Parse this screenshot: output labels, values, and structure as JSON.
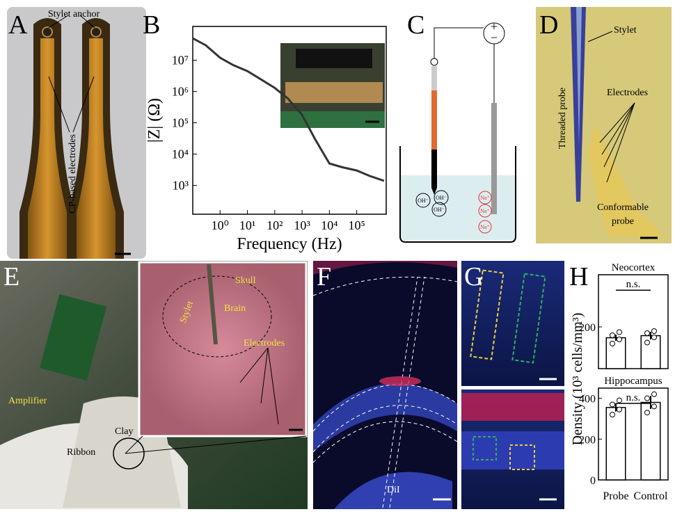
{
  "panel_labels": [
    "A",
    "B",
    "C",
    "D",
    "E",
    "F",
    "G",
    "H"
  ],
  "annotations": {
    "A": [
      "Stylet anchor",
      "CP-based electrodes"
    ],
    "C": {
      "battery": [
        "+",
        "−"
      ],
      "anode_ions": [
        "OH⁻",
        "OH⁻",
        "OH⁻"
      ],
      "cathode_ions": [
        "Na⁺",
        "Na⁺",
        "Na⁺"
      ]
    },
    "D": [
      "Stylet",
      "Threaded probe",
      "Electrodes",
      "Conformable",
      "probe"
    ],
    "E": [
      "Amplifier",
      "Ribbon",
      "Clay",
      "Skull",
      "Brain",
      "Stylet",
      "Electrodes"
    ],
    "F": [
      "DiI"
    ]
  },
  "chart_data": [
    {
      "type": "line",
      "ylabel": "|Z| (Ω)",
      "xlabel": "Frequency (Hz)",
      "x": [
        0.1,
        0.3,
        1,
        3,
        10,
        30,
        100,
        300,
        1000,
        3000,
        10000,
        30000,
        100000,
        300000,
        1000000
      ],
      "series": [
        {
          "color": "#333333",
          "values": [
            50000000,
            30000000,
            12000000,
            7000000,
            4500000,
            2500000,
            1300000,
            600000,
            180000,
            30000,
            5000,
            3800,
            3000,
            2000,
            1400
          ]
        }
      ],
      "xlim": [
        0.1,
        1200000
      ],
      "ylim": [
        120,
        120000000
      ],
      "log_x": true,
      "log_y": true,
      "xticks": [
        {
          "value": 1,
          "label": "10⁰"
        },
        {
          "value": 10,
          "label": "10¹"
        },
        {
          "value": 100,
          "label": "10²"
        },
        {
          "value": 1000,
          "label": "10³"
        },
        {
          "value": 10000,
          "label": "10⁴"
        },
        {
          "value": 100000,
          "label": "10⁵"
        }
      ],
      "yticks": [
        {
          "value": 1000,
          "label": "10³"
        },
        {
          "value": 10000,
          "label": "10⁴"
        },
        {
          "value": 100000,
          "label": "10⁵"
        },
        {
          "value": 1000000,
          "label": "10⁶"
        },
        {
          "value": 10000000,
          "label": "10⁷"
        }
      ]
    },
    {
      "type": "bar",
      "title": "Neocortex",
      "categories": [
        null,
        null
      ],
      "values": [
        148,
        158
      ],
      "errors": [
        15,
        18
      ],
      "points": [
        [
          120,
          140,
          160,
          175
        ],
        [
          125,
          150,
          170,
          180
        ]
      ],
      "annotation": "n.s.",
      "ylim": [
        0,
        450
      ],
      "yticks": [
        200
      ],
      "color": "#ffffff"
    },
    {
      "type": "bar",
      "title": "Hippocampus",
      "categories": [
        "Probe",
        "Control"
      ],
      "values": [
        355,
        380
      ],
      "errors": [
        20,
        32
      ],
      "points": [
        [
          320,
          345,
          370,
          390
        ],
        [
          330,
          360,
          400,
          420
        ]
      ],
      "annotation": "n.s.",
      "ylim": [
        0,
        450
      ],
      "yticks": [
        0,
        200,
        400
      ],
      "color": "#ffffff",
      "ylabel": "Density (10³ cells/mm³)"
    }
  ]
}
